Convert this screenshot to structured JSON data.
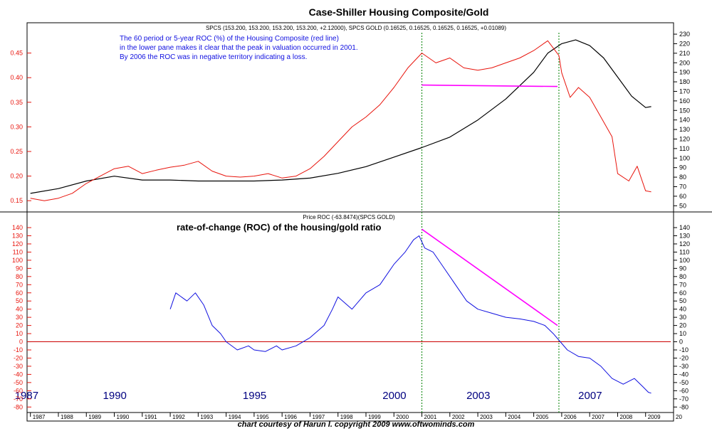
{
  "title": "Case-Shiller Housing Composite/Gold",
  "legend_line": "SPCS (153.200, 153.200, 153.200, 153.200, +2.12000), SPCS GOLD (0.16525, 0.16525, 0.16525, 0.16525, +0.01089)",
  "annotation": [
    "The 60 period or 5-year ROC (%) of the Housing Composite (red line)",
    "in the lower pane makes it clear that the peak in valuation occurred in 2001.",
    "By 2006 the ROC was in negative territory indicating a loss."
  ],
  "lower_legend": "Price ROC (-63.8474)(SPCS GOLD)",
  "lower_title": "rate-of-change (ROC) of the housing/gold ratio",
  "big_years": [
    "1987",
    "1990",
    "1995",
    "2000",
    "2003",
    "2007"
  ],
  "footer": "chart courtesy of Harun I.   copyright 2009       www.oftwominds.com",
  "colors": {
    "ratio": "#e8140c",
    "spcs": "#000000",
    "roc": "#1010e0",
    "trend": "#ff00ff",
    "axis_left": "#e8140c",
    "zero": "#cc0000",
    "guide": "#008000"
  },
  "chart_data": [
    {
      "type": "line",
      "title": "Case-Shiller Housing Composite/Gold",
      "y_left": {
        "ticks": [
          "0.15",
          "0.20",
          "0.25",
          "0.30",
          "0.35",
          "0.40",
          "0.45"
        ],
        "range": [
          0.13,
          0.5
        ]
      },
      "y_right": {
        "ticks": [
          "50",
          "60",
          "70",
          "80",
          "90",
          "100",
          "110",
          "120",
          "130",
          "140",
          "150",
          "160",
          "170",
          "180",
          "190",
          "200",
          "210",
          "220",
          "230"
        ],
        "range": [
          45,
          236
        ]
      },
      "series": [
        {
          "name": "SPCS GOLD",
          "axis": "left",
          "points": [
            [
              1987.0,
              0.155
            ],
            [
              1987.5,
              0.15
            ],
            [
              1988.0,
              0.155
            ],
            [
              1988.5,
              0.165
            ],
            [
              1989.0,
              0.185
            ],
            [
              1989.5,
              0.2
            ],
            [
              1990.0,
              0.215
            ],
            [
              1990.5,
              0.22
            ],
            [
              1991.0,
              0.205
            ],
            [
              1991.5,
              0.212
            ],
            [
              1992.0,
              0.218
            ],
            [
              1992.5,
              0.222
            ],
            [
              1993.0,
              0.23
            ],
            [
              1993.5,
              0.21
            ],
            [
              1994.0,
              0.2
            ],
            [
              1994.5,
              0.198
            ],
            [
              1995.0,
              0.2
            ],
            [
              1995.5,
              0.205
            ],
            [
              1996.0,
              0.196
            ],
            [
              1996.5,
              0.2
            ],
            [
              1997.0,
              0.215
            ],
            [
              1997.5,
              0.24
            ],
            [
              1998.0,
              0.27
            ],
            [
              1998.5,
              0.3
            ],
            [
              1999.0,
              0.32
            ],
            [
              1999.5,
              0.345
            ],
            [
              2000.0,
              0.38
            ],
            [
              2000.5,
              0.42
            ],
            [
              2001.0,
              0.45
            ],
            [
              2001.5,
              0.43
            ],
            [
              2002.0,
              0.44
            ],
            [
              2002.5,
              0.42
            ],
            [
              2003.0,
              0.415
            ],
            [
              2003.5,
              0.42
            ],
            [
              2004.0,
              0.43
            ],
            [
              2004.5,
              0.44
            ],
            [
              2005.0,
              0.455
            ],
            [
              2005.5,
              0.475
            ],
            [
              2005.9,
              0.445
            ],
            [
              2006.0,
              0.41
            ],
            [
              2006.3,
              0.36
            ],
            [
              2006.6,
              0.38
            ],
            [
              2007.0,
              0.36
            ],
            [
              2007.4,
              0.32
            ],
            [
              2007.8,
              0.28
            ],
            [
              2008.0,
              0.205
            ],
            [
              2008.4,
              0.19
            ],
            [
              2008.7,
              0.22
            ],
            [
              2009.0,
              0.17
            ],
            [
              2009.2,
              0.168
            ]
          ]
        },
        {
          "name": "SPCS",
          "axis": "right",
          "points": [
            [
              1987.0,
              63
            ],
            [
              1988.0,
              68
            ],
            [
              1989.0,
              76
            ],
            [
              1990.0,
              81
            ],
            [
              1991.0,
              77
            ],
            [
              1992.0,
              77
            ],
            [
              1993.0,
              76
            ],
            [
              1994.0,
              76
            ],
            [
              1995.0,
              76
            ],
            [
              1996.0,
              77
            ],
            [
              1997.0,
              79
            ],
            [
              1998.0,
              84
            ],
            [
              1999.0,
              91
            ],
            [
              2000.0,
              101
            ],
            [
              2001.0,
              111
            ],
            [
              2002.0,
              122
            ],
            [
              2003.0,
              140
            ],
            [
              2004.0,
              162
            ],
            [
              2005.0,
              190
            ],
            [
              2005.5,
              210
            ],
            [
              2006.0,
              220
            ],
            [
              2006.5,
              224
            ],
            [
              2007.0,
              218
            ],
            [
              2007.5,
              205
            ],
            [
              2008.0,
              185
            ],
            [
              2008.5,
              165
            ],
            [
              2009.0,
              153
            ],
            [
              2009.2,
              154
            ]
          ]
        }
      ]
    },
    {
      "type": "line",
      "title": "rate-of-change (ROC) of the housing/gold ratio",
      "y": {
        "ticks": [
          "-80",
          "-70",
          "-60",
          "-50",
          "-40",
          "-30",
          "-20",
          "-10",
          "0",
          "10",
          "20",
          "30",
          "40",
          "50",
          "60",
          "70",
          "80",
          "90",
          "100",
          "110",
          "120",
          "130",
          "140"
        ],
        "range": [
          -85,
          147
        ]
      },
      "x_ticks": [
        "1987",
        "1988",
        "1989",
        "1990",
        "1991",
        "1992",
        "1993",
        "1994",
        "1995",
        "1996",
        "1997",
        "1998",
        "1999",
        "2000",
        "2001",
        "2002",
        "2003",
        "2004",
        "2005",
        "2006",
        "2007",
        "2008",
        "2009",
        "20"
      ],
      "series": [
        {
          "name": "Price ROC",
          "axis": "left",
          "points": [
            [
              1992.0,
              40
            ],
            [
              1992.2,
              60
            ],
            [
              1992.6,
              50
            ],
            [
              1992.9,
              60
            ],
            [
              1993.2,
              45
            ],
            [
              1993.5,
              20
            ],
            [
              1993.8,
              10
            ],
            [
              1994.0,
              0
            ],
            [
              1994.4,
              -10
            ],
            [
              1994.8,
              -5
            ],
            [
              1995.0,
              -10
            ],
            [
              1995.4,
              -12
            ],
            [
              1995.8,
              -5
            ],
            [
              1996.0,
              -10
            ],
            [
              1996.5,
              -5
            ],
            [
              1997.0,
              5
            ],
            [
              1997.5,
              20
            ],
            [
              1997.8,
              40
            ],
            [
              1998.0,
              55
            ],
            [
              1998.5,
              40
            ],
            [
              1999.0,
              60
            ],
            [
              1999.5,
              70
            ],
            [
              2000.0,
              95
            ],
            [
              2000.4,
              110
            ],
            [
              2000.7,
              125
            ],
            [
              2000.9,
              130
            ],
            [
              2001.1,
              115
            ],
            [
              2001.4,
              110
            ],
            [
              2001.8,
              90
            ],
            [
              2002.2,
              70
            ],
            [
              2002.6,
              50
            ],
            [
              2003.0,
              40
            ],
            [
              2003.5,
              35
            ],
            [
              2004.0,
              30
            ],
            [
              2004.5,
              28
            ],
            [
              2005.0,
              25
            ],
            [
              2005.4,
              20
            ],
            [
              2005.7,
              10
            ],
            [
              2005.95,
              0
            ],
            [
              2006.2,
              -10
            ],
            [
              2006.6,
              -18
            ],
            [
              2007.0,
              -20
            ],
            [
              2007.4,
              -30
            ],
            [
              2007.8,
              -45
            ],
            [
              2008.2,
              -52
            ],
            [
              2008.6,
              -45
            ],
            [
              2008.9,
              -55
            ],
            [
              2009.1,
              -62
            ],
            [
              2009.2,
              -63
            ]
          ]
        },
        {
          "name": "zero",
          "axis": "left",
          "points": [
            [
              1986.9,
              0
            ],
            [
              2009.9,
              0
            ]
          ]
        },
        {
          "name": "trend",
          "axis": "left",
          "points": [
            [
              2001.0,
              138
            ],
            [
              2005.85,
              20
            ]
          ]
        }
      ],
      "upper_trend": [
        [
          2001.0,
          0.385
        ],
        [
          2005.85,
          0.382
        ]
      ],
      "guides_x": [
        2001.0,
        2005.9
      ]
    }
  ]
}
